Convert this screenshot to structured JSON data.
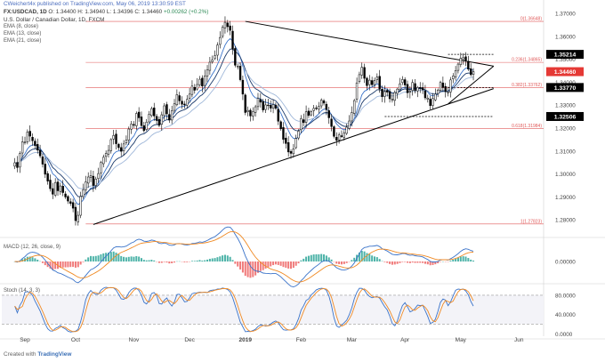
{
  "header": {
    "author": "CWeichert4x published on TradingView.com, May 06, 2019 13:30:59 EST",
    "symbol": "FX:USDCAD, 1D",
    "ohlc": "O: 1.34400  H: 1.34940  L: 1.34396  C: 1.34460",
    "change": "+0.00262 (+0.2%)",
    "title_line": "U.S. Dollar / Canadian Dollar, 1D, FXCM",
    "indicators": [
      "EMA (8, close)",
      "EMA (13, close)",
      "EMA (21, close)"
    ]
  },
  "footer": {
    "created_with": "Created with",
    "brand": "TradingView"
  },
  "colors": {
    "bull": "#ffffff",
    "bear": "#000000",
    "ema8": "#3a73c9",
    "ema13": "#1b3a6b",
    "ema21": "#9fb7d9",
    "fib": "#e05a5a",
    "trendline": "#000000",
    "macd_line": "#3a73c9",
    "signal_line": "#f08a24",
    "hist_pos": "#4db3a8",
    "hist_neg": "#f07a7a",
    "stoch_k": "#3a73c9",
    "stoch_d": "#f08a24",
    "price_label_black": "#000000",
    "price_label_red": "#e53935"
  },
  "chart_data": {
    "type": "candlestick",
    "title": "U.S. Dollar / Canadian Dollar, 1D, FXCM",
    "x_axis_labels": [
      "Sep",
      "Oct",
      "Nov",
      "Dec",
      "2019",
      "Feb",
      "Mar",
      "Apr",
      "May",
      "Jun"
    ],
    "y_axis_ticks": [
      "1.37000",
      "1.36000",
      "1.35000",
      "1.34000",
      "1.33000",
      "1.32000",
      "1.31000",
      "1.30000",
      "1.29000",
      "1.28000"
    ],
    "ylim": [
      1.2735,
      1.3735
    ],
    "price_labels": [
      {
        "text": "1.35214",
        "value": 1.35214,
        "style": "black"
      },
      {
        "text": "1.34460",
        "value": 1.3446,
        "style": "red"
      },
      {
        "text": "1.33770",
        "value": 1.3377,
        "style": "black"
      },
      {
        "text": "1.32506",
        "value": 1.32506,
        "style": "black"
      }
    ],
    "fibonacci": [
      {
        "label": "0(1.36648)",
        "value": 1.36648
      },
      {
        "label": "0.236(1.34865)",
        "value": 1.34865
      },
      {
        "label": "0.382(1.33762)",
        "value": 1.33762
      },
      {
        "label": "0.618(1.31984)",
        "value": 1.31984
      },
      {
        "label": "1(1.27823)",
        "value": 1.27823
      }
    ],
    "trendlines": [
      {
        "from": {
          "date": "2018-10-10",
          "value": 1.278
        },
        "to": {
          "date": "2019-05-20",
          "value": 1.3372
        }
      },
      {
        "from": {
          "date": "2019-01-02",
          "value": 1.3665
        },
        "to": {
          "date": "2019-05-20",
          "value": 1.347
        }
      },
      {
        "from": {
          "date": "2019-04-24",
          "value": 1.3305
        },
        "to": {
          "date": "2019-05-20",
          "value": 1.347
        }
      }
    ],
    "dashed_levels": [
      {
        "value": 1.35214,
        "from": "2019-04-24",
        "to": "2019-05-20"
      },
      {
        "value": 1.3377,
        "from": "2019-04-24",
        "to": "2019-05-20"
      },
      {
        "value": 1.32506,
        "from": "2019-03-20",
        "to": "2019-05-20"
      }
    ],
    "price_series": {
      "start_date": "2018-08-28",
      "interval": "1 trading day",
      "close": [
        1.3049,
        1.3028,
        1.3089,
        1.314,
        1.3139,
        1.3183,
        1.3165,
        1.3145,
        1.3124,
        1.3104,
        1.3079,
        1.3043,
        1.2999,
        1.2969,
        1.2936,
        1.2912,
        1.2963,
        1.2927,
        1.2948,
        1.2919,
        1.29,
        1.2882,
        1.2872,
        1.2851,
        1.2797,
        1.282,
        1.2902,
        1.2931,
        1.2966,
        1.2987,
        1.2993,
        1.295,
        1.2978,
        1.3002,
        1.305,
        1.3073,
        1.309,
        1.3103,
        1.315,
        1.3168,
        1.3132,
        1.3115,
        1.3099,
        1.3131,
        1.3147,
        1.3196,
        1.3218,
        1.3212,
        1.3264,
        1.3245,
        1.3211,
        1.3189,
        1.3226,
        1.326,
        1.3285,
        1.3253,
        1.3233,
        1.3212,
        1.3258,
        1.3297,
        1.3262,
        1.3235,
        1.3275,
        1.3306,
        1.3346,
        1.3319,
        1.3304,
        1.3301,
        1.3325,
        1.3348,
        1.3383,
        1.3365,
        1.339,
        1.3413,
        1.3383,
        1.3427,
        1.3454,
        1.3487,
        1.3498,
        1.3516,
        1.3562,
        1.3595,
        1.3639,
        1.3661,
        1.3642,
        1.3626,
        1.3544,
        1.3474,
        1.347,
        1.3411,
        1.3348,
        1.3268,
        1.3277,
        1.3253,
        1.3271,
        1.3293,
        1.333,
        1.3313,
        1.3279,
        1.3301,
        1.33,
        1.3287,
        1.3303,
        1.3286,
        1.323,
        1.3197,
        1.3151,
        1.3133,
        1.3096,
        1.309,
        1.311,
        1.3155,
        1.3187,
        1.3242,
        1.3224,
        1.3271,
        1.3255,
        1.3272,
        1.3286,
        1.3287,
        1.3295,
        1.3322,
        1.3309,
        1.3281,
        1.3245,
        1.3207,
        1.3164,
        1.3147,
        1.317,
        1.3163,
        1.3178,
        1.3204,
        1.3231,
        1.3268,
        1.332,
        1.3397,
        1.3433,
        1.3465,
        1.3417,
        1.3385,
        1.3409,
        1.3389,
        1.3407,
        1.3422,
        1.3371,
        1.3337,
        1.3359,
        1.3357,
        1.3328,
        1.3326,
        1.3355,
        1.337,
        1.3393,
        1.3412,
        1.3388,
        1.3354,
        1.3361,
        1.3399,
        1.3363,
        1.3377,
        1.3377,
        1.3367,
        1.3332,
        1.3331,
        1.3298,
        1.3329,
        1.3348,
        1.3366,
        1.3399,
        1.3377,
        1.3359,
        1.3358,
        1.341,
        1.3427,
        1.3451,
        1.3479,
        1.3504,
        1.3507,
        1.3495,
        1.3457,
        1.3433,
        1.3446
      ]
    },
    "ema_periods": [
      8,
      13,
      21
    ]
  },
  "macd": {
    "label": "MACD (12, 26, close, 9)",
    "y_axis_ticks": [
      "0.00000"
    ],
    "ylim": [
      -0.0062,
      0.0062
    ]
  },
  "stoch": {
    "label": "Stoch (14, 3, 3)",
    "y_axis_ticks": [
      "80.0000",
      "40.0000",
      "0.0000"
    ],
    "ylim": [
      -5,
      102
    ],
    "bands": [
      80,
      20
    ]
  }
}
